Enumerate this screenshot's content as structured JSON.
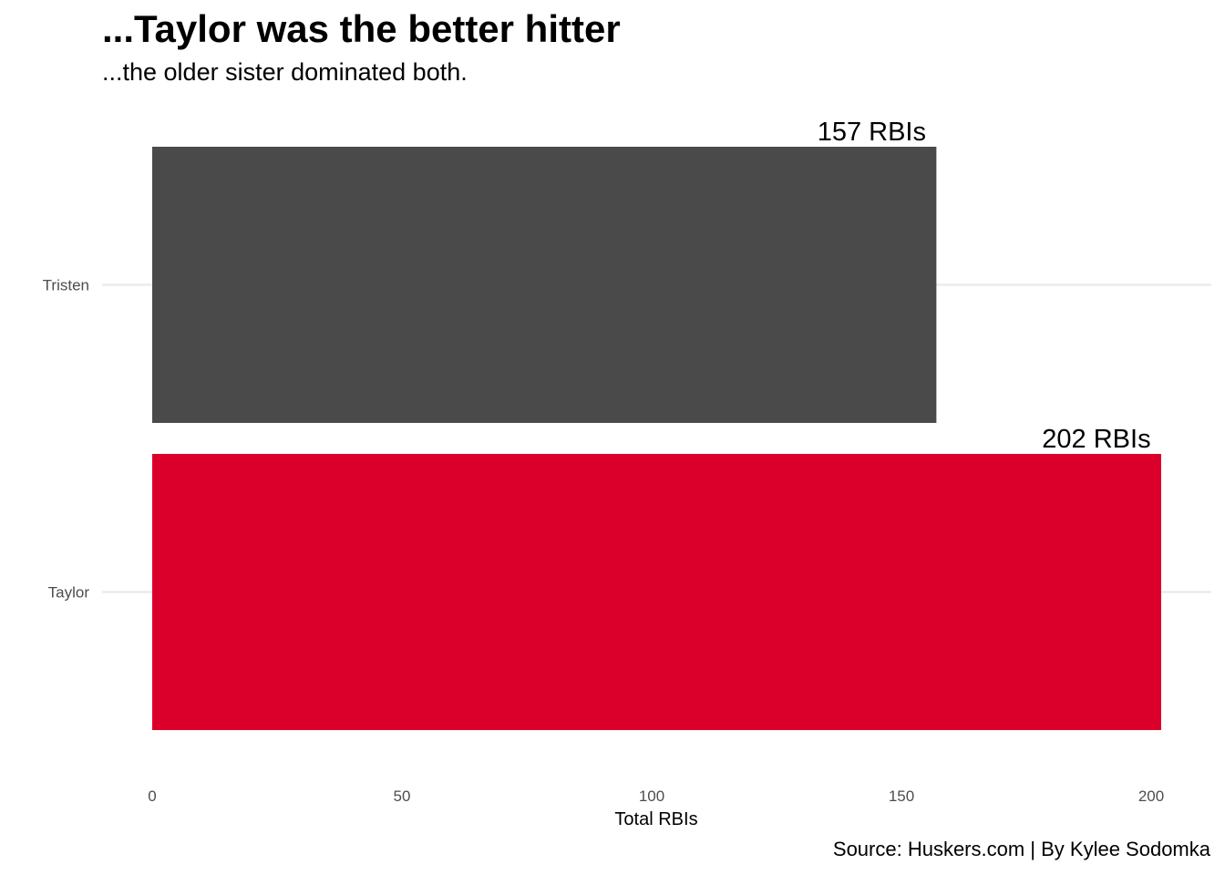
{
  "chart_data": {
    "type": "bar",
    "orientation": "horizontal",
    "title": "...Taylor was the better hitter",
    "subtitle": "...the older sister dominated both.",
    "caption": "Source: Huskers.com | By Kylee Sodomka",
    "xlabel": "Total RBIs",
    "ylabel": "",
    "categories": [
      "Tristen",
      "Taylor"
    ],
    "values": [
      157,
      202
    ],
    "data_labels": [
      "157 RBIs",
      "202 RBIs"
    ],
    "bar_colors": [
      "#4a4a4a",
      "#db002c"
    ],
    "xlim": [
      0,
      202
    ],
    "xticks": [
      0,
      50,
      100,
      150,
      200
    ],
    "grid": "horizontal major lines only",
    "legend": "none"
  }
}
